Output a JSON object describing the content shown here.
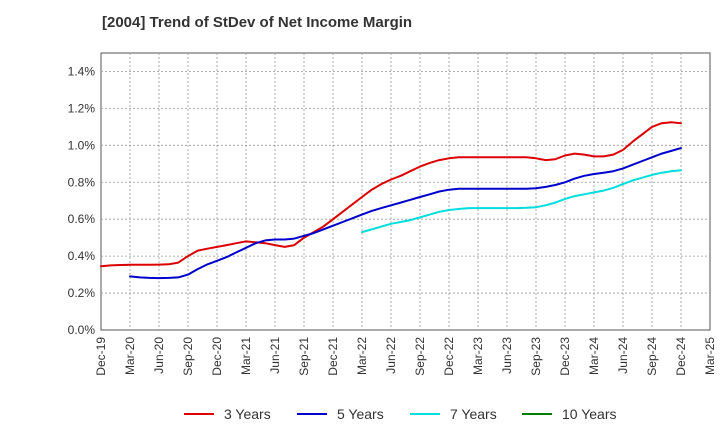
{
  "title": "[2004]  Trend of StDev of Net Income Margin",
  "chart_data": {
    "type": "line",
    "title": "[2004]  Trend of StDev of Net Income Margin",
    "xlabel": "",
    "ylabel": "",
    "x_ticks": [
      "Dec-19",
      "Mar-20",
      "Jun-20",
      "Sep-20",
      "Dec-20",
      "Mar-21",
      "Jun-21",
      "Sep-21",
      "Dec-21",
      "Mar-22",
      "Jun-22",
      "Sep-22",
      "Dec-22",
      "Mar-23",
      "Jun-23",
      "Sep-23",
      "Dec-23",
      "Mar-24",
      "Jun-24",
      "Sep-24",
      "Dec-24",
      "Mar-25"
    ],
    "y_ticks": [
      "0.0%",
      "0.2%",
      "0.4%",
      "0.6%",
      "0.8%",
      "1.0%",
      "1.2%",
      "1.4%"
    ],
    "ylim": [
      0,
      1.5
    ],
    "y_unit": "%",
    "grid": true,
    "legend_position": "bottom",
    "series": [
      {
        "name": "3 Years",
        "color": "#dd0000",
        "x": [
          "Dec-19",
          "Jan-20",
          "Feb-20",
          "Mar-20",
          "Apr-20",
          "May-20",
          "Jun-20",
          "Jul-20",
          "Aug-20",
          "Sep-20",
          "Oct-20",
          "Nov-20",
          "Dec-20",
          "Jan-21",
          "Feb-21",
          "Mar-21",
          "Apr-21",
          "May-21",
          "Jun-21",
          "Jul-21",
          "Aug-21",
          "Sep-21",
          "Oct-21",
          "Nov-21",
          "Dec-21",
          "Jan-22",
          "Feb-22",
          "Mar-22",
          "Apr-22",
          "May-22",
          "Jun-22",
          "Jul-22",
          "Aug-22",
          "Sep-22",
          "Oct-22",
          "Nov-22",
          "Dec-22",
          "Jan-23",
          "Feb-23",
          "Mar-23",
          "Apr-23",
          "May-23",
          "Jun-23",
          "Jul-23",
          "Aug-23",
          "Sep-23",
          "Oct-23",
          "Nov-23",
          "Dec-23",
          "Jan-24",
          "Feb-24",
          "Mar-24",
          "Apr-24",
          "May-24",
          "Jun-24",
          "Jul-24",
          "Aug-24",
          "Sep-24",
          "Oct-24",
          "Nov-24",
          "Dec-24"
        ],
        "values": [
          0.345,
          0.35,
          0.352,
          0.353,
          0.353,
          0.353,
          0.354,
          0.356,
          0.365,
          0.4,
          0.43,
          0.44,
          0.45,
          0.46,
          0.47,
          0.48,
          0.475,
          0.47,
          0.46,
          0.45,
          0.46,
          0.5,
          0.53,
          0.56,
          0.6,
          0.64,
          0.68,
          0.72,
          0.76,
          0.79,
          0.815,
          0.835,
          0.86,
          0.885,
          0.905,
          0.92,
          0.93,
          0.935,
          0.935,
          0.935,
          0.935,
          0.935,
          0.935,
          0.935,
          0.935,
          0.93,
          0.92,
          0.925,
          0.945,
          0.955,
          0.95,
          0.94,
          0.94,
          0.95,
          0.975,
          1.02,
          1.06,
          1.1,
          1.12,
          1.125,
          1.12
        ]
      },
      {
        "name": "5 Years",
        "color": "#0000cc",
        "x": [
          "Mar-20",
          "Apr-20",
          "May-20",
          "Jun-20",
          "Jul-20",
          "Aug-20",
          "Sep-20",
          "Oct-20",
          "Nov-20",
          "Dec-20",
          "Jan-21",
          "Feb-21",
          "Mar-21",
          "Apr-21",
          "May-21",
          "Jun-21",
          "Jul-21",
          "Aug-21",
          "Sep-21",
          "Oct-21",
          "Nov-21",
          "Dec-21",
          "Jan-22",
          "Feb-22",
          "Mar-22",
          "Apr-22",
          "May-22",
          "Jun-22",
          "Jul-22",
          "Aug-22",
          "Sep-22",
          "Oct-22",
          "Nov-22",
          "Dec-22",
          "Jan-23",
          "Feb-23",
          "Mar-23",
          "Apr-23",
          "May-23",
          "Jun-23",
          "Jul-23",
          "Aug-23",
          "Sep-23",
          "Oct-23",
          "Nov-23",
          "Dec-23",
          "Jan-24",
          "Feb-24",
          "Mar-24",
          "Apr-24",
          "May-24",
          "Jun-24",
          "Jul-24",
          "Aug-24",
          "Sep-24",
          "Oct-24",
          "Nov-24",
          "Dec-24"
        ],
        "values": [
          0.29,
          0.285,
          0.282,
          0.281,
          0.282,
          0.285,
          0.3,
          0.33,
          0.355,
          0.375,
          0.395,
          0.42,
          0.445,
          0.47,
          0.485,
          0.49,
          0.49,
          0.495,
          0.51,
          0.525,
          0.545,
          0.565,
          0.585,
          0.605,
          0.625,
          0.645,
          0.66,
          0.675,
          0.69,
          0.705,
          0.72,
          0.735,
          0.75,
          0.76,
          0.765,
          0.765,
          0.765,
          0.765,
          0.765,
          0.765,
          0.765,
          0.765,
          0.768,
          0.775,
          0.785,
          0.8,
          0.82,
          0.835,
          0.845,
          0.852,
          0.86,
          0.875,
          0.895,
          0.915,
          0.935,
          0.955,
          0.97,
          0.985
        ]
      },
      {
        "name": "7 Years",
        "color": "#00dddd",
        "x": [
          "Mar-22",
          "Apr-22",
          "May-22",
          "Jun-22",
          "Jul-22",
          "Aug-22",
          "Sep-22",
          "Oct-22",
          "Nov-22",
          "Dec-22",
          "Jan-23",
          "Feb-23",
          "Mar-23",
          "Apr-23",
          "May-23",
          "Jun-23",
          "Jul-23",
          "Aug-23",
          "Sep-23",
          "Oct-23",
          "Nov-23",
          "Dec-23",
          "Jan-24",
          "Feb-24",
          "Mar-24",
          "Apr-24",
          "May-24",
          "Jun-24",
          "Jul-24",
          "Aug-24",
          "Sep-24",
          "Oct-24",
          "Nov-24",
          "Dec-24"
        ],
        "values": [
          0.53,
          0.545,
          0.56,
          0.575,
          0.585,
          0.595,
          0.61,
          0.625,
          0.64,
          0.65,
          0.655,
          0.66,
          0.66,
          0.66,
          0.66,
          0.66,
          0.66,
          0.662,
          0.665,
          0.675,
          0.69,
          0.71,
          0.725,
          0.735,
          0.745,
          0.755,
          0.77,
          0.79,
          0.81,
          0.825,
          0.84,
          0.852,
          0.86,
          0.865
        ]
      },
      {
        "name": "10 Years",
        "color": "#008000",
        "x": [],
        "values": []
      }
    ]
  }
}
